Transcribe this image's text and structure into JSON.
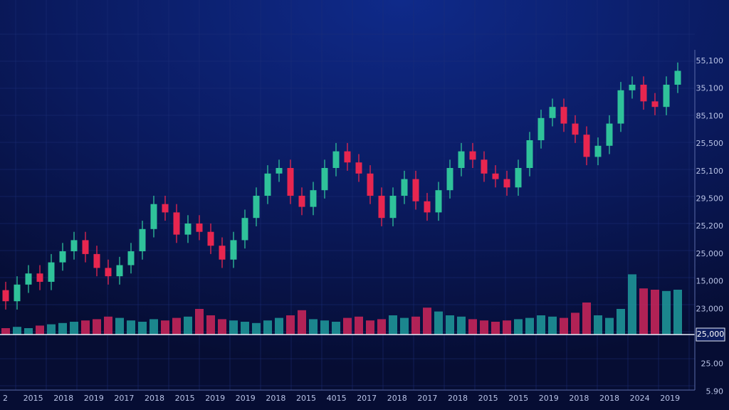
{
  "chart_data": {
    "type": "candlestick",
    "up_color": "#2fc29a",
    "down_color": "#e8264f",
    "volume_up_color": "#1e9497",
    "volume_down_color": "#c42559",
    "ylim": [
      0,
      100
    ],
    "volume_ylim": [
      0,
      100
    ],
    "grid": true,
    "open": [
      16,
      12,
      18,
      22,
      19,
      26,
      30,
      34,
      29,
      24,
      21,
      25,
      30,
      38,
      47,
      44,
      36,
      40,
      37,
      32,
      27,
      34,
      42,
      50,
      58,
      60,
      50,
      46,
      52,
      60,
      66,
      62,
      58,
      50,
      42,
      50,
      56,
      48,
      44,
      52,
      60,
      66,
      63,
      58,
      56,
      53,
      60,
      70,
      78,
      82,
      76,
      72,
      64,
      68,
      76,
      88,
      90,
      84,
      82,
      90
    ],
    "high": [
      19,
      21,
      25,
      25,
      29,
      33,
      37,
      37,
      32,
      27,
      28,
      33,
      41,
      50,
      50,
      47,
      43,
      43,
      40,
      35,
      37,
      45,
      53,
      61,
      63,
      63,
      53,
      55,
      63,
      69,
      69,
      65,
      61,
      53,
      53,
      59,
      59,
      51,
      55,
      63,
      69,
      69,
      66,
      61,
      59,
      63,
      73,
      81,
      85,
      85,
      79,
      75,
      71,
      79,
      91,
      93,
      93,
      87,
      93,
      98
    ],
    "low": [
      9,
      9,
      15,
      16,
      16,
      23,
      27,
      26,
      21,
      18,
      18,
      22,
      27,
      35,
      41,
      33,
      33,
      34,
      29,
      24,
      24,
      31,
      39,
      47,
      55,
      47,
      43,
      43,
      49,
      57,
      59,
      55,
      47,
      39,
      39,
      47,
      45,
      41,
      41,
      49,
      57,
      60,
      55,
      53,
      50,
      50,
      57,
      67,
      75,
      73,
      69,
      61,
      61,
      65,
      73,
      85,
      81,
      79,
      79,
      87
    ],
    "close": [
      12,
      18,
      22,
      19,
      26,
      30,
      34,
      29,
      24,
      21,
      25,
      30,
      38,
      47,
      44,
      36,
      40,
      37,
      32,
      27,
      34,
      42,
      50,
      58,
      60,
      50,
      46,
      52,
      60,
      66,
      62,
      58,
      50,
      42,
      50,
      56,
      48,
      44,
      52,
      60,
      66,
      63,
      58,
      56,
      53,
      60,
      70,
      78,
      82,
      76,
      72,
      64,
      68,
      76,
      88,
      90,
      84,
      82,
      90,
      95
    ],
    "volume": [
      10,
      12,
      10,
      14,
      16,
      18,
      20,
      22,
      24,
      28,
      26,
      22,
      20,
      24,
      22,
      26,
      28,
      40,
      30,
      24,
      22,
      20,
      18,
      22,
      26,
      30,
      38,
      24,
      22,
      20,
      26,
      28,
      22,
      24,
      30,
      26,
      28,
      42,
      36,
      30,
      28,
      24,
      22,
      20,
      22,
      24,
      26,
      30,
      28,
      26,
      34,
      50,
      30,
      26,
      40,
      94,
      72,
      70,
      68,
      70
    ],
    "x_labels": [
      "2",
      "2015",
      "2018",
      "2019",
      "2017",
      "2018",
      "2015",
      "2019",
      "2019",
      "2018",
      "2015",
      "4015",
      "2017",
      "2018",
      "2017",
      "2018",
      "2015",
      "2015",
      "2019",
      "2018",
      "2018",
      "2024",
      "2019"
    ],
    "y_labels": [
      "55,100",
      "35,100",
      "85,100",
      "25,500",
      "25,100",
      "29,500",
      "25,200",
      "25,000",
      "15,000",
      "23,000",
      "25,000",
      "25.00",
      "5.90"
    ],
    "current_label_index": 10
  }
}
